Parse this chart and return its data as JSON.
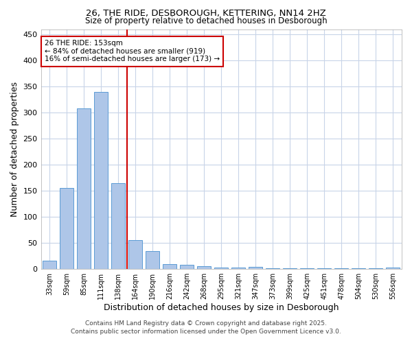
{
  "title1": "26, THE RIDE, DESBOROUGH, KETTERING, NN14 2HZ",
  "title2": "Size of property relative to detached houses in Desborough",
  "xlabel": "Distribution of detached houses by size in Desborough",
  "ylabel": "Number of detached properties",
  "categories": [
    "33sqm",
    "59sqm",
    "85sqm",
    "111sqm",
    "138sqm",
    "164sqm",
    "190sqm",
    "216sqm",
    "242sqm",
    "268sqm",
    "295sqm",
    "321sqm",
    "347sqm",
    "373sqm",
    "399sqm",
    "425sqm",
    "451sqm",
    "478sqm",
    "504sqm",
    "530sqm",
    "556sqm"
  ],
  "values": [
    16,
    155,
    308,
    340,
    165,
    55,
    35,
    10,
    8,
    6,
    3,
    3,
    4,
    2,
    1,
    1,
    1,
    1,
    1,
    1,
    3
  ],
  "bar_color": "#aec6e8",
  "bar_edge_color": "#5b9bd5",
  "vline_x": 4.5,
  "vline_color": "#cc0000",
  "annotation_title": "26 THE RIDE: 153sqm",
  "annotation_line1": "← 84% of detached houses are smaller (919)",
  "annotation_line2": "16% of semi-detached houses are larger (173) →",
  "annotation_box_color": "#cc0000",
  "ylim": [
    0,
    460
  ],
  "yticks": [
    0,
    50,
    100,
    150,
    200,
    250,
    300,
    350,
    400,
    450
  ],
  "footer1": "Contains HM Land Registry data © Crown copyright and database right 2025.",
  "footer2": "Contains public sector information licensed under the Open Government Licence v3.0."
}
